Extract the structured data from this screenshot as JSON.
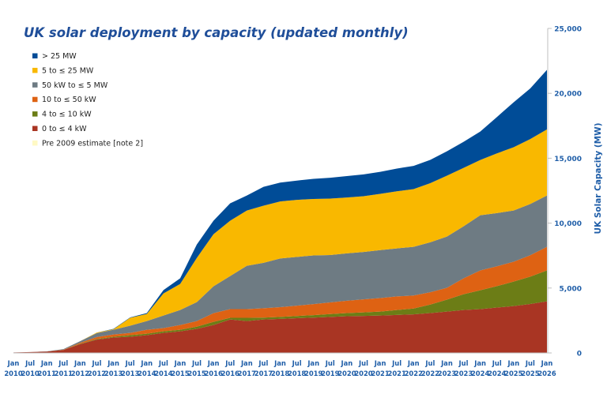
{
  "chart_data": {
    "type": "area",
    "stacked": true,
    "title": "UK solar deployment by capacity (updated monthly)",
    "xlabel": "",
    "ylabel": "UK Solar Capacity (MW)",
    "ylim": [
      0,
      25000
    ],
    "yticks": [
      0,
      5000,
      10000,
      15000,
      20000,
      25000
    ],
    "ytick_labels": [
      "0",
      "5,000",
      "10,000",
      "15,000",
      "20,000",
      "25,000"
    ],
    "y_axis_side": "right",
    "grid": false,
    "legend_position": "top-left",
    "categories": [
      [
        "Jan",
        "2010"
      ],
      [
        "Jul",
        "2010"
      ],
      [
        "Jan",
        "2011"
      ],
      [
        "Jul",
        "2011"
      ],
      [
        "Jan",
        "2012"
      ],
      [
        "Jul",
        "2012"
      ],
      [
        "Jan",
        "2013"
      ],
      [
        "Jul",
        "2013"
      ],
      [
        "Jan",
        "2014"
      ],
      [
        "Jul",
        "2014"
      ],
      [
        "Jan",
        "2015"
      ],
      [
        "Jul",
        "2015"
      ],
      [
        "Jan",
        "2016"
      ],
      [
        "Jul",
        "2016"
      ],
      [
        "Jan",
        "2017"
      ],
      [
        "Jul",
        "2017"
      ],
      [
        "Jan",
        "2018"
      ],
      [
        "Jul",
        "2018"
      ],
      [
        "Jan",
        "2019"
      ],
      [
        "Jul",
        "2019"
      ],
      [
        "Jan",
        "2020"
      ],
      [
        "Jul",
        "2020"
      ],
      [
        "Jan",
        "2021"
      ],
      [
        "Jul",
        "2021"
      ],
      [
        "Jan",
        "2022"
      ],
      [
        "Jul",
        "2022"
      ],
      [
        "Jan",
        "2023"
      ],
      [
        "Jul",
        "2023"
      ],
      [
        "Jan",
        "2024"
      ],
      [
        "Jul",
        "2024"
      ],
      [
        "Jan",
        "2025"
      ],
      [
        "Jul",
        "2025"
      ],
      [
        "Jan",
        "2026"
      ]
    ],
    "series": [
      {
        "name": "Pre 2009 estimate [note 2]",
        "color": "#fff9c4",
        "values": [
          25,
          25,
          25,
          25,
          25,
          25,
          25,
          25,
          25,
          25,
          25,
          25,
          25,
          25,
          25,
          25,
          25,
          25,
          25,
          25,
          25,
          25,
          25,
          25,
          25,
          25,
          25,
          25,
          25,
          25,
          25,
          25,
          25
        ]
      },
      {
        "name": "0 to ≤ 4 kW",
        "color": "#a93523",
        "values": [
          15,
          40,
          80,
          200,
          650,
          1000,
          1160,
          1220,
          1340,
          1520,
          1640,
          1830,
          2130,
          2550,
          2430,
          2550,
          2600,
          2650,
          2700,
          2750,
          2800,
          2830,
          2860,
          2900,
          2950,
          3050,
          3160,
          3280,
          3350,
          3470,
          3590,
          3750,
          3950
        ]
      },
      {
        "name": "4 to ≤ 10 kW",
        "color": "#6c7d16",
        "values": [
          0,
          0,
          0,
          5,
          30,
          50,
          60,
          120,
          120,
          120,
          120,
          170,
          240,
          130,
          250,
          150,
          150,
          170,
          190,
          220,
          250,
          270,
          300,
          380,
          450,
          650,
          920,
          1220,
          1450,
          1650,
          1880,
          2100,
          2380
        ]
      },
      {
        "name": "10 to ≤ 50 kW",
        "color": "#de6213",
        "values": [
          0,
          2,
          5,
          20,
          80,
          150,
          180,
          180,
          300,
          250,
          370,
          430,
          670,
          670,
          670,
          720,
          750,
          800,
          850,
          900,
          950,
          1000,
          1040,
          1050,
          1000,
          950,
          910,
          1220,
          1530,
          1530,
          1530,
          1650,
          1820
        ]
      },
      {
        "name": "50 kW to ≤ 5 MW",
        "color": "#6e7b83",
        "values": [
          0,
          5,
          10,
          50,
          120,
          300,
          360,
          550,
          670,
          970,
          1150,
          1460,
          2070,
          2550,
          3340,
          3500,
          3750,
          3750,
          3750,
          3650,
          3650,
          3650,
          3700,
          3700,
          3750,
          3850,
          3950,
          4010,
          4250,
          4100,
          3950,
          3950,
          3950
        ]
      },
      {
        "name": "5 to ≤ 25 MW",
        "color": "#f9b800",
        "values": [
          0,
          0,
          0,
          0,
          0,
          50,
          40,
          610,
          550,
          1700,
          2010,
          3410,
          4010,
          4260,
          4260,
          4400,
          4400,
          4400,
          4350,
          4350,
          4300,
          4300,
          4330,
          4400,
          4450,
          4550,
          4690,
          4500,
          4260,
          4600,
          4870,
          5000,
          5100
        ]
      },
      {
        "name": "> 25 MW",
        "color": "#004c97",
        "values": [
          0,
          0,
          0,
          0,
          0,
          0,
          30,
          30,
          70,
          260,
          430,
          1030,
          1040,
          1340,
          1150,
          1450,
          1450,
          1480,
          1550,
          1600,
          1650,
          1680,
          1700,
          1750,
          1780,
          1800,
          1880,
          2010,
          2190,
          2800,
          3460,
          3900,
          4580
        ]
      }
    ]
  }
}
